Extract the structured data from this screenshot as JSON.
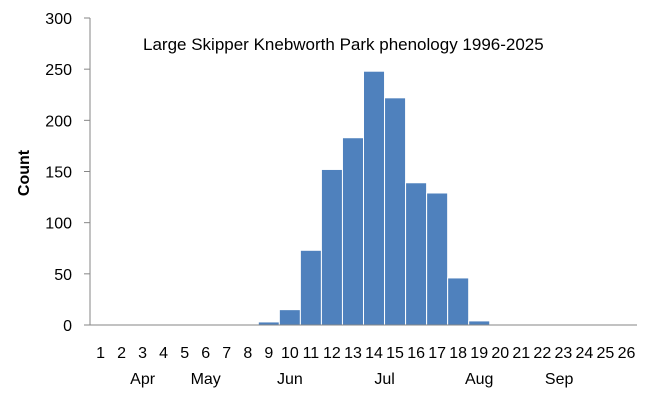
{
  "chart_data": {
    "type": "bar",
    "title": "Large Skipper Knebworth Park phenology 1996-2025",
    "xlabel": "",
    "ylabel": "Count",
    "categories": [
      "1",
      "2",
      "3",
      "4",
      "5",
      "6",
      "7",
      "8",
      "9",
      "10",
      "11",
      "12",
      "13",
      "14",
      "15",
      "16",
      "17",
      "18",
      "19",
      "20",
      "21",
      "22",
      "23",
      "24",
      "25",
      "26"
    ],
    "values": [
      0,
      0,
      0,
      0,
      0,
      0,
      0,
      0,
      3,
      15,
      73,
      152,
      183,
      248,
      222,
      139,
      129,
      46,
      4,
      0,
      0,
      0,
      0,
      0,
      0,
      0
    ],
    "ylim": [
      0,
      300
    ],
    "yticks": [
      0,
      50,
      100,
      150,
      200,
      250,
      300
    ],
    "month_labels": [
      {
        "label": "Apr",
        "week": 3
      },
      {
        "label": "May",
        "week": 6
      },
      {
        "label": "Jun",
        "week": 10
      },
      {
        "label": "Jul",
        "week": 14.5
      },
      {
        "label": "Aug",
        "week": 19
      },
      {
        "label": "Sep",
        "week": 22.8
      }
    ],
    "grid": false,
    "legend": "none",
    "bar_color": "#4f81bd",
    "axis_color": "#868686"
  }
}
